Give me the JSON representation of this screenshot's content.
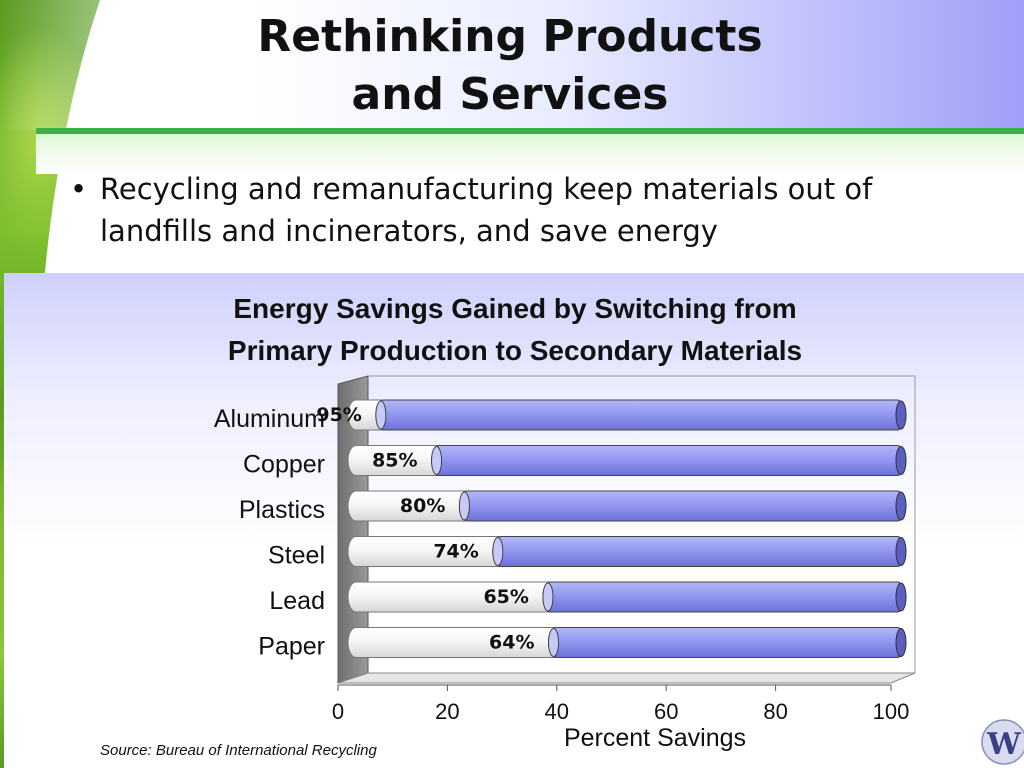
{
  "slide": {
    "title_line1": "Rethinking Products",
    "title_line2": "and Services",
    "bullet_text": "Recycling and remanufacturing keep materials out of landfills and incinerators, and save energy",
    "source": "Source: Bureau of International Recycling",
    "logo_text": "W"
  },
  "colors": {
    "bar_fill": "#8f95f0",
    "bar_track": "#f2f2f2",
    "accent_green": "#3fae49"
  },
  "chart_data": {
    "type": "bar",
    "orientation": "horizontal",
    "title_line1": "Energy Savings Gained by Switching from",
    "title_line2": "Primary Production to Secondary Materials",
    "xlabel": "Percent Savings",
    "ylabel": "",
    "categories": [
      "Aluminum",
      "Copper",
      "Plastics",
      "Steel",
      "Lead",
      "Paper"
    ],
    "values": [
      95,
      85,
      80,
      74,
      65,
      64
    ],
    "value_labels": [
      "95%",
      "85%",
      "80%",
      "74%",
      "65%",
      "64%"
    ],
    "xlim": [
      0,
      100
    ],
    "xticks": [
      0,
      20,
      40,
      60,
      80,
      100
    ],
    "grid": false,
    "legend": "none"
  }
}
